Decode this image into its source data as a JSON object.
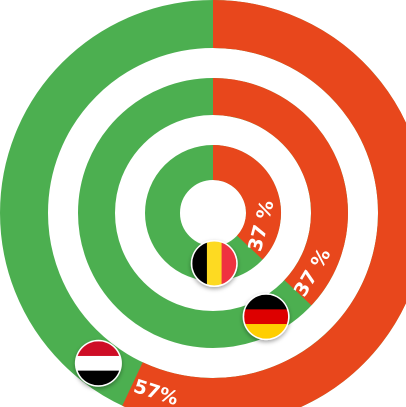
{
  "chart_data": {
    "type": "radial-progress",
    "values": [
      57,
      37,
      37
    ],
    "value_labels": [
      "57%",
      "37 %",
      "37 %"
    ],
    "color": "#e8471c",
    "track_color": "#4caf50",
    "ylim": [
      0,
      100
    ]
  }
}
